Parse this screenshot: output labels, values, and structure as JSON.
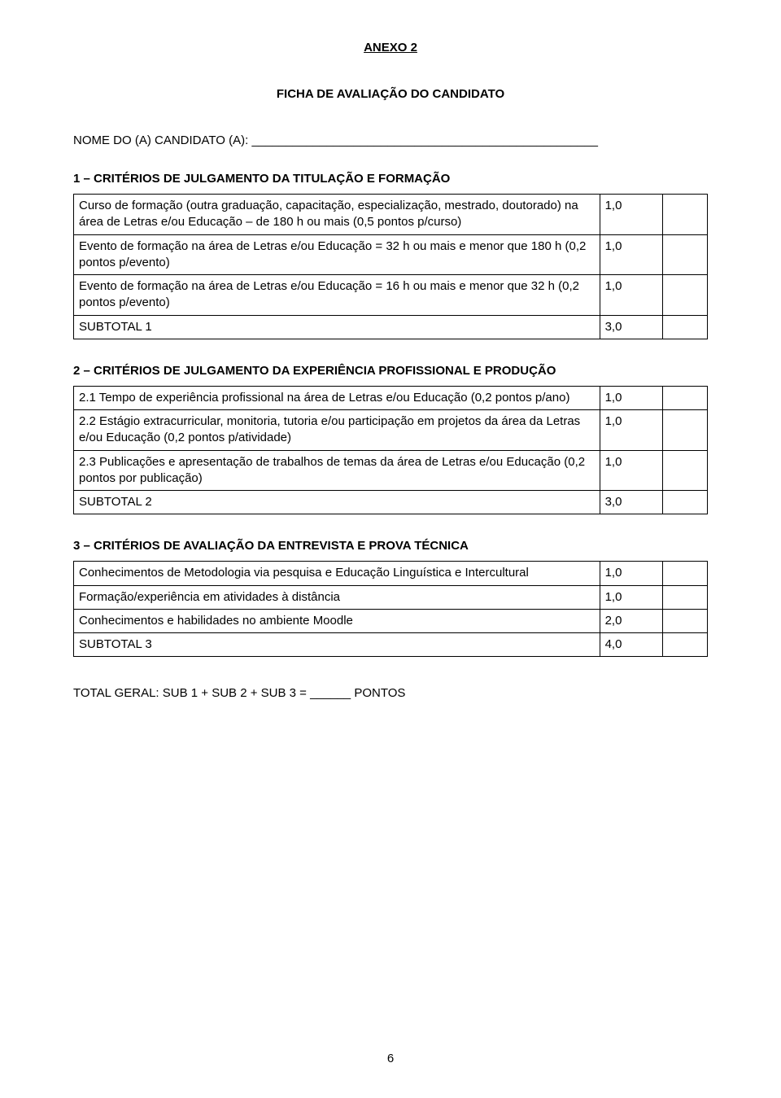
{
  "annex_title": "ANEXO 2",
  "main_title": "FICHA DE AVALIAÇÃO DO CANDIDATO",
  "candidate_label": "NOME DO (A) CANDIDATO (A): ___________________________________________________",
  "section1": {
    "heading": "1 – CRITÉRIOS DE JULGAMENTO DA TITULAÇÃO E FORMAÇÃO",
    "rows": [
      {
        "desc": "Curso de formação (outra graduação, capacitação, especialização, mestrado, doutorado) na área de Letras e/ou Educação – de 180 h ou mais (0,5 pontos p/curso)",
        "score": "1,0"
      },
      {
        "desc": "Evento de formação na área de Letras e/ou Educação = 32 h ou mais e menor que 180 h (0,2 pontos p/evento)",
        "score": "1,0"
      },
      {
        "desc": "Evento de formação na área de Letras e/ou Educação = 16 h ou mais e menor que 32 h (0,2 pontos p/evento)",
        "score": "1,0"
      },
      {
        "desc": "SUBTOTAL 1",
        "score": "3,0"
      }
    ]
  },
  "section2": {
    "heading": "2 – CRITÉRIOS DE JULGAMENTO DA EXPERIÊNCIA PROFISSIONAL E PRODUÇÃO",
    "rows": [
      {
        "desc": "2.1 Tempo de experiência profissional na área de Letras e/ou Educação (0,2 pontos p/ano)",
        "score": "1,0"
      },
      {
        "desc": "2.2 Estágio extracurricular, monitoria, tutoria e/ou participação em projetos da área da Letras e/ou Educação (0,2 pontos p/atividade)",
        "score": "1,0"
      },
      {
        "desc": "2.3 Publicações e apresentação de trabalhos de temas da área de Letras e/ou Educação (0,2 pontos por publicação)",
        "score": "1,0"
      },
      {
        "desc": "SUBTOTAL 2",
        "score": "3,0"
      }
    ]
  },
  "section3": {
    "heading": "3 – CRITÉRIOS DE AVALIAÇÃO DA ENTREVISTA E PROVA TÉCNICA",
    "rows": [
      {
        "desc": "Conhecimentos de Metodologia via pesquisa e Educação Linguística e Intercultural",
        "score": "1,0"
      },
      {
        "desc": "Formação/experiência em atividades à distância",
        "score": "1,0"
      },
      {
        "desc": "Conhecimentos e habilidades no ambiente Moodle",
        "score": "2,0"
      },
      {
        "desc": "SUBTOTAL 3",
        "score": "4,0"
      }
    ]
  },
  "total_line": "TOTAL GERAL: SUB 1 + SUB 2 + SUB 3 = ______ PONTOS",
  "page_number": "6"
}
